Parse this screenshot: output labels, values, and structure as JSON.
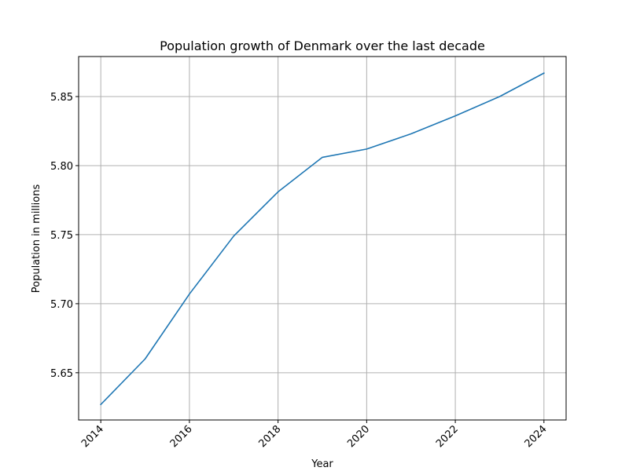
{
  "chart_data": {
    "type": "line",
    "title": "Population growth of Denmark over the last decade",
    "xlabel": "Year",
    "ylabel": "Population in millions",
    "x": [
      2014,
      2015,
      2016,
      2017,
      2018,
      2019,
      2020,
      2021,
      2022,
      2023,
      2024
    ],
    "series": [
      {
        "values": [
          5.627,
          5.66,
          5.707,
          5.749,
          5.781,
          5.806,
          5.812,
          5.823,
          5.836,
          5.85,
          5.867
        ],
        "color": "#1f77b4"
      }
    ],
    "xticks": [
      2014,
      2016,
      2018,
      2020,
      2022,
      2024
    ],
    "xtick_labels": [
      "2014",
      "2016",
      "2018",
      "2020",
      "2022",
      "2024"
    ],
    "yticks": [
      5.65,
      5.7,
      5.75,
      5.8,
      5.85
    ],
    "ytick_labels": [
      "5.65",
      "5.70",
      "5.75",
      "5.80",
      "5.85"
    ],
    "xlim": [
      2013.5,
      2024.5
    ],
    "ylim": [
      5.6158,
      5.879
    ],
    "grid": true,
    "grid_color": "#b0b0b0",
    "xtick_rotation": 45
  }
}
